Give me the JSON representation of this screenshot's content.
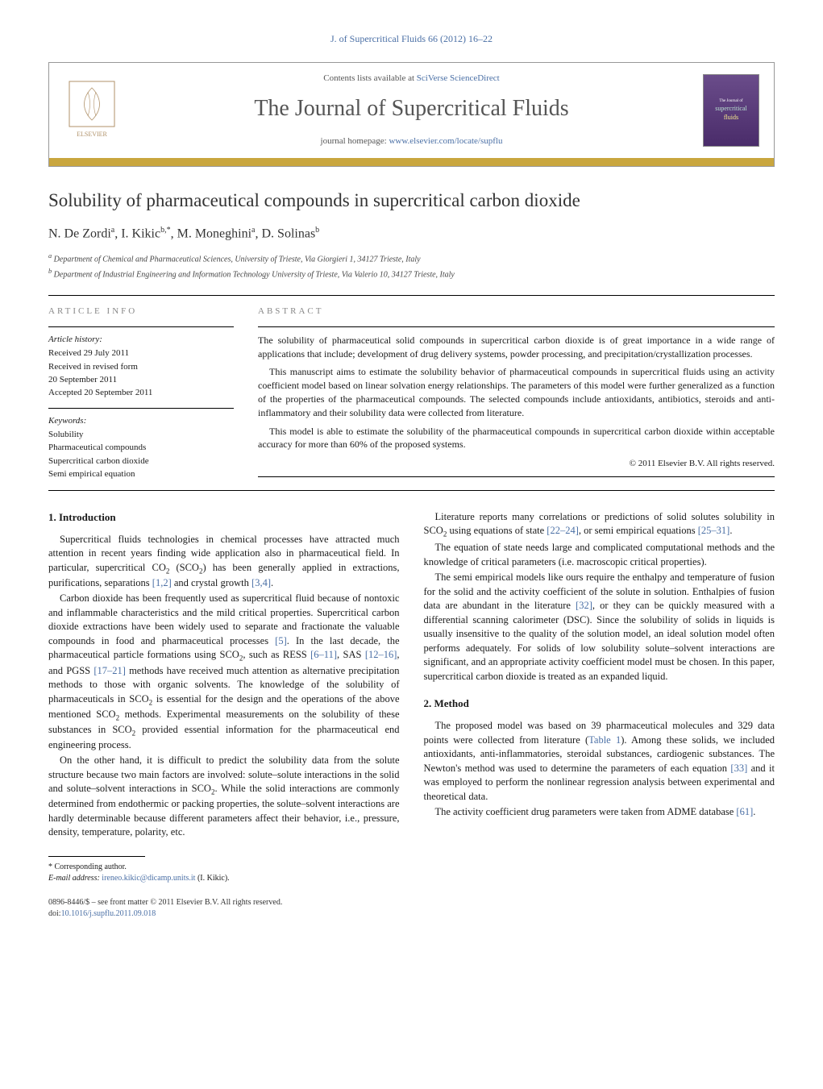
{
  "journal_ref": "J. of Supercritical Fluids 66 (2012) 16–22",
  "header": {
    "contents_prefix": "Contents lists available at ",
    "contents_link": "SciVerse ScienceDirect",
    "journal_name": "The Journal of Supercritical Fluids",
    "homepage_prefix": "journal homepage: ",
    "homepage_link": "www.elsevier.com/locate/supflu",
    "cover_line1": "supercritical",
    "cover_line2": "fluids"
  },
  "title": "Solubility of pharmaceutical compounds in supercritical carbon dioxide",
  "authors_html": "N. De Zordi<sup>a</sup>, I. Kikic<sup>b,*</sup>, M. Moneghini<sup>a</sup>, D. Solinas<sup>b</sup>",
  "affiliations": [
    "a Department of Chemical and Pharmaceutical Sciences, University of Trieste, Via Giorgieri 1, 34127 Trieste, Italy",
    "b Department of Industrial Engineering and Information Technology University of Trieste, Via Valerio 10, 34127 Trieste, Italy"
  ],
  "article_info_head": "ARTICLE INFO",
  "abstract_head": "ABSTRACT",
  "history_label": "Article history:",
  "history": [
    "Received 29 July 2011",
    "Received in revised form",
    "20 September 2011",
    "Accepted 20 September 2011"
  ],
  "keywords_label": "Keywords:",
  "keywords": [
    "Solubility",
    "Pharmaceutical compounds",
    "Supercritical carbon dioxide",
    "Semi empirical equation"
  ],
  "abstract": [
    "The solubility of pharmaceutical solid compounds in supercritical carbon dioxide is of great importance in a wide range of applications that include; development of drug delivery systems, powder processing, and precipitation/crystallization processes.",
    "This manuscript aims to estimate the solubility behavior of pharmaceutical compounds in supercritical fluids using an activity coefficient model based on linear solvation energy relationships. The parameters of this model were further generalized as a function of the properties of the pharmaceutical compounds. The selected compounds include antioxidants, antibiotics, steroids and anti-inflammatory and their solubility data were collected from literature.",
    "This model is able to estimate the solubility of the pharmaceutical compounds in supercritical carbon dioxide within acceptable accuracy for more than 60% of the proposed systems."
  ],
  "copyright": "© 2011 Elsevier B.V. All rights reserved.",
  "sections": {
    "intro_head": "1. Introduction",
    "method_head": "2. Method",
    "intro": [
      "Supercritical fluids technologies in chemical processes have attracted much attention in recent years finding wide application also in pharmaceutical field. In particular, supercritical CO<sub>2</sub> (SCO<sub>2</sub>) has been generally applied in extractions, purifications, separations <a>[1,2]</a> and crystal growth <a>[3,4]</a>.",
      "Carbon dioxide has been frequently used as supercritical fluid because of nontoxic and inflammable characteristics and the mild critical properties. Supercritical carbon dioxide extractions have been widely used to separate and fractionate the valuable compounds in food and pharmaceutical processes <a>[5]</a>. In the last decade, the pharmaceutical particle formations using SCO<sub>2</sub>, such as RESS <a>[6–11]</a>, SAS <a>[12–16]</a>, and PGSS <a>[17–21]</a> methods have received much attention as alternative precipitation methods to those with organic solvents. The knowledge of the solubility of pharmaceuticals in SCO<sub>2</sub> is essential for the design and the operations of the above mentioned SCO<sub>2</sub> methods. Experimental measurements on the solubility of these substances in SCO<sub>2</sub> provided essential information for the pharmaceutical end engineering process.",
      "On the other hand, it is difficult to predict the solubility data from the solute structure because two main factors are involved: solute–solute interactions in the solid and solute–solvent interactions in SCO<sub>2</sub>. While the solid interactions are commonly determined from endothermic or packing properties, the solute–solvent interactions are hardly determinable because different parameters affect their behavior, i.e., pressure, density, temperature, polarity, etc.",
      "Literature reports many correlations or predictions of solid solutes solubility in SCO<sub>2</sub> using equations of state <a>[22–24]</a>, or semi empirical equations <a>[25–31]</a>.",
      "The equation of state needs large and complicated computational methods and the knowledge of critical parameters (i.e. macroscopic critical properties).",
      "The semi empirical models like ours require the enthalpy and temperature of fusion for the solid and the activity coefficient of the solute in solution. Enthalpies of fusion data are abundant in the literature <a>[32]</a>, or they can be quickly measured with a differential scanning calorimeter (DSC). Since the solubility of solids in liquids is usually insensitive to the quality of the solution model, an ideal solution model often performs adequately. For solids of low solubility solute–solvent interactions are significant, and an appropriate activity coefficient model must be chosen. In this paper, supercritical carbon dioxide is treated as an expanded liquid."
    ],
    "method": [
      "The proposed model was based on 39 pharmaceutical molecules and 329 data points were collected from literature (<a>Table 1</a>). Among these solids, we included antioxidants, anti-inflammatories, steroidal substances, cardiogenic substances. The Newton's method was used to determine the parameters of each equation <a>[33]</a> and it was employed to perform the nonlinear regression analysis between experimental and theoretical data.",
      "The activity coefficient drug parameters were taken from ADME database <a>[61]</a>."
    ]
  },
  "footnote": {
    "marker": "* Corresponding author.",
    "email_label": "E-mail address: ",
    "email": "ireneo.kikic@dicamp.units.it",
    "email_who": " (I. Kikic)."
  },
  "bottom": {
    "line1": "0896-8446/$ – see front matter © 2011 Elsevier B.V. All rights reserved.",
    "doi_label": "doi:",
    "doi": "10.1016/j.supflu.2011.09.018"
  },
  "colors": {
    "link": "#4a6fa5",
    "gold": "#c9a63e",
    "cover_bg": "#5a3c7a"
  }
}
